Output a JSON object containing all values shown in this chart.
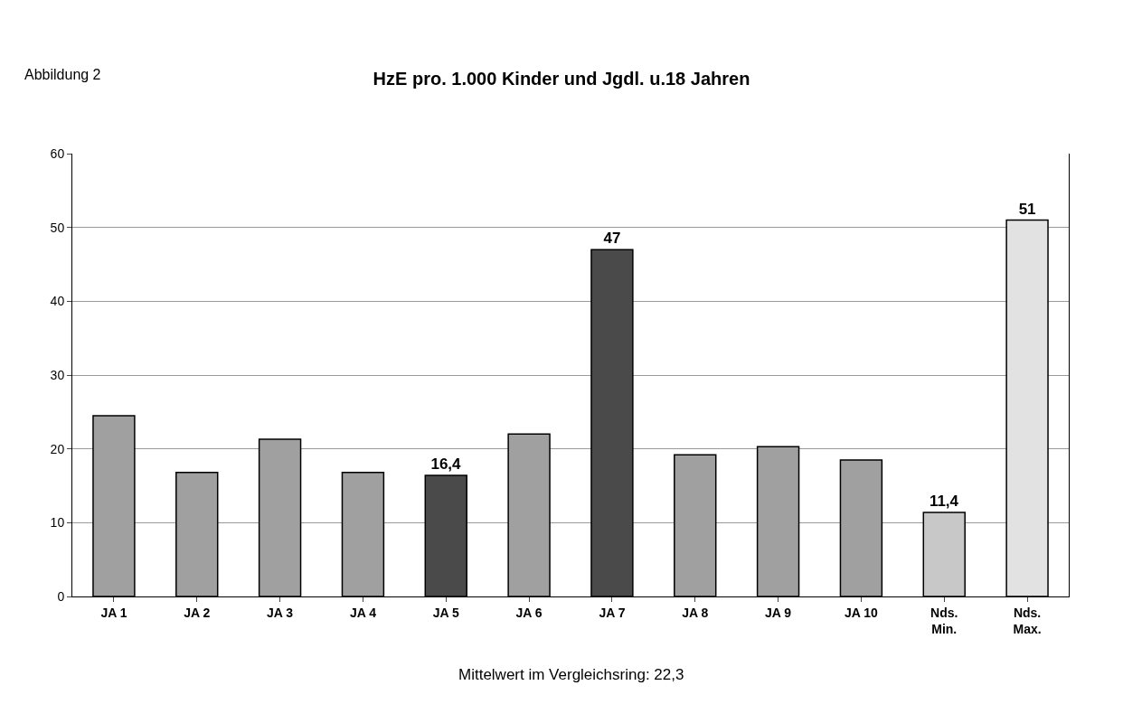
{
  "chart_data": {
    "type": "bar",
    "title": "HzE pro. 1.000 Kinder und Jgdl. u.18 Jahren",
    "categories": [
      "JA 1",
      "JA 2",
      "JA 3",
      "JA 4",
      "JA 5",
      "JA 6",
      "JA 7",
      "JA 8",
      "JA 9",
      "JA 10",
      "Nds. Min.",
      "Nds. Max."
    ],
    "values": [
      24.5,
      16.8,
      21.3,
      16.8,
      16.4,
      22,
      47,
      19.2,
      20.3,
      18.5,
      11.4,
      51
    ],
    "colors": [
      "#a0a0a0",
      "#a0a0a0",
      "#a0a0a0",
      "#a0a0a0",
      "#4a4a4a",
      "#a0a0a0",
      "#4a4a4a",
      "#a0a0a0",
      "#a0a0a0",
      "#a0a0a0",
      "#c8c8c8",
      "#e2e2e2"
    ],
    "value_labels": [
      null,
      null,
      null,
      null,
      "16,4",
      null,
      "47",
      null,
      null,
      null,
      "11,4",
      "51"
    ],
    "ylim": [
      0,
      60
    ],
    "yticks": [
      0,
      10,
      20,
      30,
      40,
      50,
      60
    ],
    "grid": "y",
    "annotations": [
      "Abbildung 2",
      "Mittelwert im Vergleichsring: 22,3"
    ]
  }
}
